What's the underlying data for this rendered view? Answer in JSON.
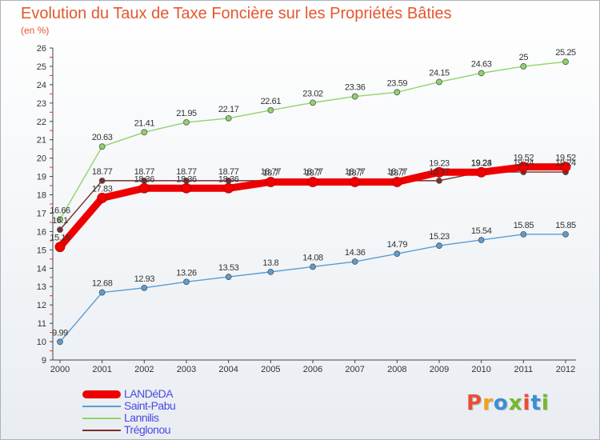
{
  "title": "Evolution du Taux de Taxe Foncière sur les Propriétés Bâties",
  "unit_label": "(en %)",
  "logo": {
    "text": "Proxiti",
    "colors": [
      "#e94f35",
      "#f4a21b",
      "#3b8fd4",
      "#76b82a",
      "#e94f35",
      "#3b8fd4",
      "#76b82a"
    ]
  },
  "chart_data": {
    "type": "line",
    "x": [
      "2000",
      "2001",
      "2002",
      "2003",
      "2004",
      "2005",
      "2006",
      "2007",
      "2008",
      "2009",
      "2010",
      "2011",
      "2012"
    ],
    "ylim": [
      9,
      26
    ],
    "yticks": [
      "9",
      "10",
      "11",
      "12",
      "13",
      "14",
      "15",
      "16",
      "17",
      "18",
      "19",
      "20",
      "21",
      "22",
      "23",
      "24",
      "25",
      "26"
    ],
    "grid": false,
    "legend_position": "bottom-left",
    "series": [
      {
        "name": "LANDéDA",
        "color": "#ee0000",
        "values": [
          15.16,
          17.83,
          18.36,
          18.36,
          18.36,
          18.7,
          18.7,
          18.7,
          18.7,
          19.23,
          19.23,
          19.52,
          19.52
        ],
        "labels": [
          "15.16",
          "17.83",
          "18.36",
          "18.36",
          "18.36",
          "18.7",
          "18.7",
          "18.7",
          "18.7",
          "19.23",
          "19.23",
          "19.52",
          "19.52"
        ]
      },
      {
        "name": "Saint-Pabu",
        "color": "#5c9cd2",
        "values": [
          9.99,
          12.68,
          12.93,
          13.26,
          13.53,
          13.8,
          14.08,
          14.36,
          14.79,
          15.23,
          15.54,
          15.85,
          15.85
        ],
        "labels": [
          "9.99",
          "12.68",
          "12.93",
          "13.26",
          "13.53",
          "13.8",
          "14.08",
          "14.36",
          "14.79",
          "15.23",
          "15.54",
          "15.85",
          "15.85"
        ]
      },
      {
        "name": "Lannilis",
        "color": "#8fd46a",
        "values": [
          16.66,
          20.63,
          21.41,
          21.95,
          22.17,
          22.61,
          23.02,
          23.36,
          23.59,
          24.15,
          24.63,
          25,
          25.25
        ],
        "labels": [
          "16.66",
          "20.63",
          "21.41",
          "21.95",
          "22.17",
          "22.61",
          "23.02",
          "23.36",
          "23.59",
          "24.15",
          "24.63",
          "25",
          "25.25"
        ]
      },
      {
        "name": "Tréglonou",
        "color": "#7a2e2e",
        "values": [
          16.1,
          18.77,
          18.77,
          18.77,
          18.77,
          18.77,
          18.77,
          18.77,
          18.77,
          18.77,
          19.24,
          19.24,
          19.24
        ],
        "labels": [
          "16.1",
          "18.77",
          "18.77",
          "18.77",
          "18.77",
          "18.77",
          "18.77",
          "18.77",
          "18.77",
          "18.77",
          "19.24",
          "19.24",
          "19.24"
        ]
      }
    ]
  }
}
